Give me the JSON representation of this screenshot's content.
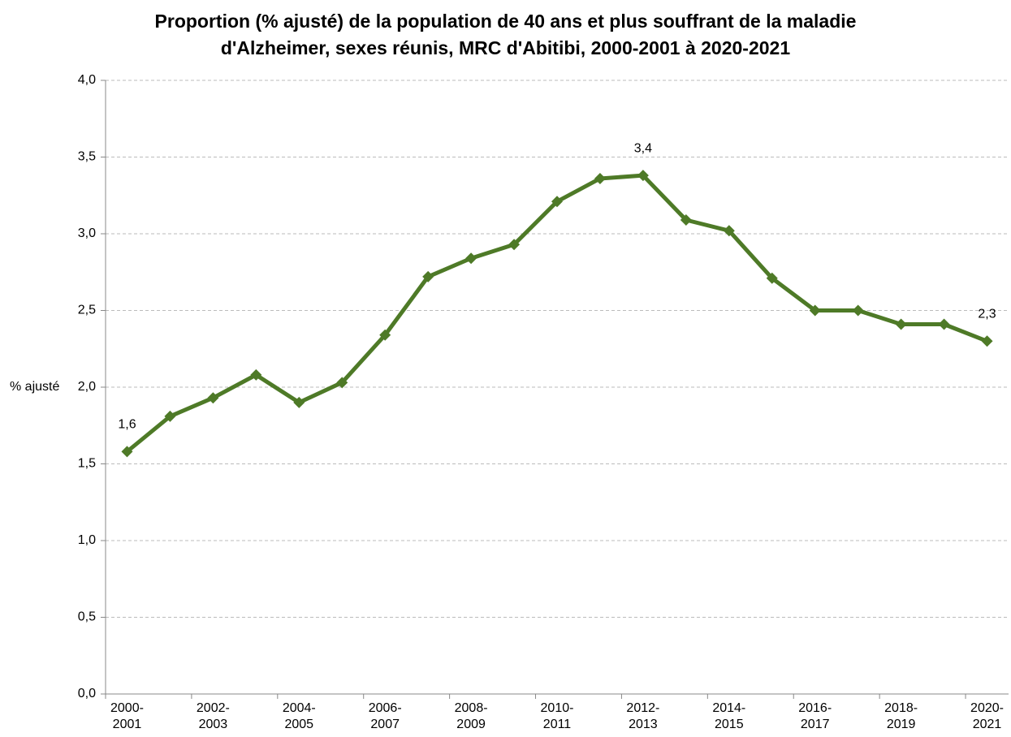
{
  "chart_data": {
    "type": "line",
    "title": "Proportion (% ajusté) de la population de 40 ans et plus souffrant de la maladie\nd'Alzheimer, sexes réunis, MRC d'Abitibi, 2000-2001 à 2020-2021",
    "y_label": "% ajusté",
    "categories": [
      "2000-\n2001",
      null,
      "2002-\n2003",
      null,
      "2004-\n2005",
      null,
      "2006-\n2007",
      null,
      "2008-\n2009",
      null,
      "2010-\n2011",
      null,
      "2012-\n2013",
      null,
      "2014-\n2015",
      null,
      "2016-\n2017",
      null,
      "2018-\n2019",
      null,
      "2020-\n2021"
    ],
    "series": [
      {
        "name": "% ajusté",
        "color": "#4e7a27",
        "values": [
          1.58,
          1.81,
          1.93,
          2.08,
          1.9,
          2.03,
          2.34,
          2.72,
          2.84,
          2.93,
          3.21,
          3.36,
          3.38,
          3.09,
          3.02,
          2.71,
          2.5,
          2.5,
          2.41,
          2.41,
          2.3
        ],
        "value_labels": [
          "1,6",
          null,
          null,
          null,
          null,
          null,
          null,
          null,
          null,
          null,
          null,
          null,
          "3,4",
          null,
          null,
          null,
          null,
          null,
          null,
          null,
          "2,3"
        ]
      }
    ],
    "ylim": [
      0,
      4
    ],
    "yticks": [
      {
        "value": 0,
        "label": "0,0"
      },
      {
        "value": 0.5,
        "label": "0,5"
      },
      {
        "value": 1,
        "label": "1,0"
      },
      {
        "value": 1.5,
        "label": "1,5"
      },
      {
        "value": 2,
        "label": "2,0"
      },
      {
        "value": 2.5,
        "label": "2,5"
      },
      {
        "value": 3,
        "label": "3,0"
      },
      {
        "value": 3.5,
        "label": "3,5"
      },
      {
        "value": 4,
        "label": "4,0"
      }
    ],
    "grid": true
  }
}
